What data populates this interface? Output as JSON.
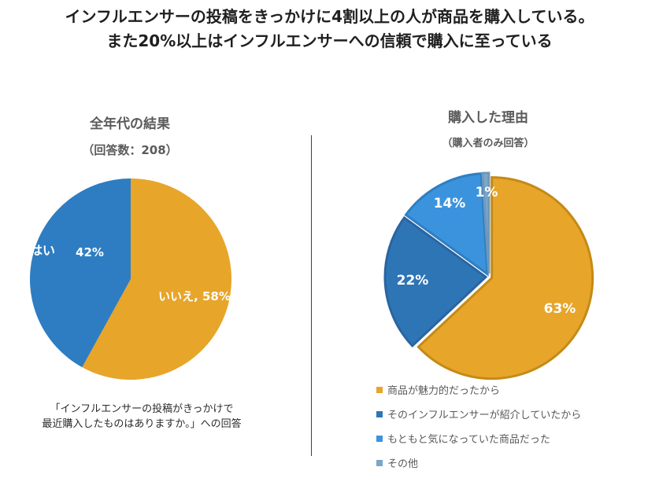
{
  "title": {
    "line1": "インフルエンサーの投稿をきっかけに4割以上の人が商品を購入している。",
    "line2": "また20%以上はインフルエンサーへの信頼で購入に至っている"
  },
  "chart_data": [
    {
      "type": "pie",
      "title": "全年代の結果",
      "subtitle": "（回答数：208）",
      "slices": [
        {
          "label": "いいえ",
          "value": 58,
          "display": "いいえ, 58%",
          "color": "#E7A52A"
        },
        {
          "label": "はい",
          "value": 42,
          "display": "はい",
          "pct": "42%",
          "color": "#2E7DC2"
        }
      ],
      "note_line1": "「インフルエンサーの投稿がきっかけで",
      "note_line2": "最近購入したものはありますか。」への回答"
    },
    {
      "type": "pie",
      "title": "購入した理由",
      "subtitle": "（購入者のみ回答）",
      "slices": [
        {
          "label": "商品が魅力的だったから",
          "value": 63,
          "display": "63%",
          "color": "#E7A52A"
        },
        {
          "label": "そのインフルエンサーが紹介していたから",
          "value": 22,
          "display": "22%",
          "color": "#2E75B6"
        },
        {
          "label": "もともと気になっていた商品だった",
          "value": 14,
          "display": "14%",
          "color": "#3B93DD"
        },
        {
          "label": "その他",
          "value": 1,
          "display": "1%",
          "color": "#7BA7C9"
        }
      ]
    }
  ]
}
